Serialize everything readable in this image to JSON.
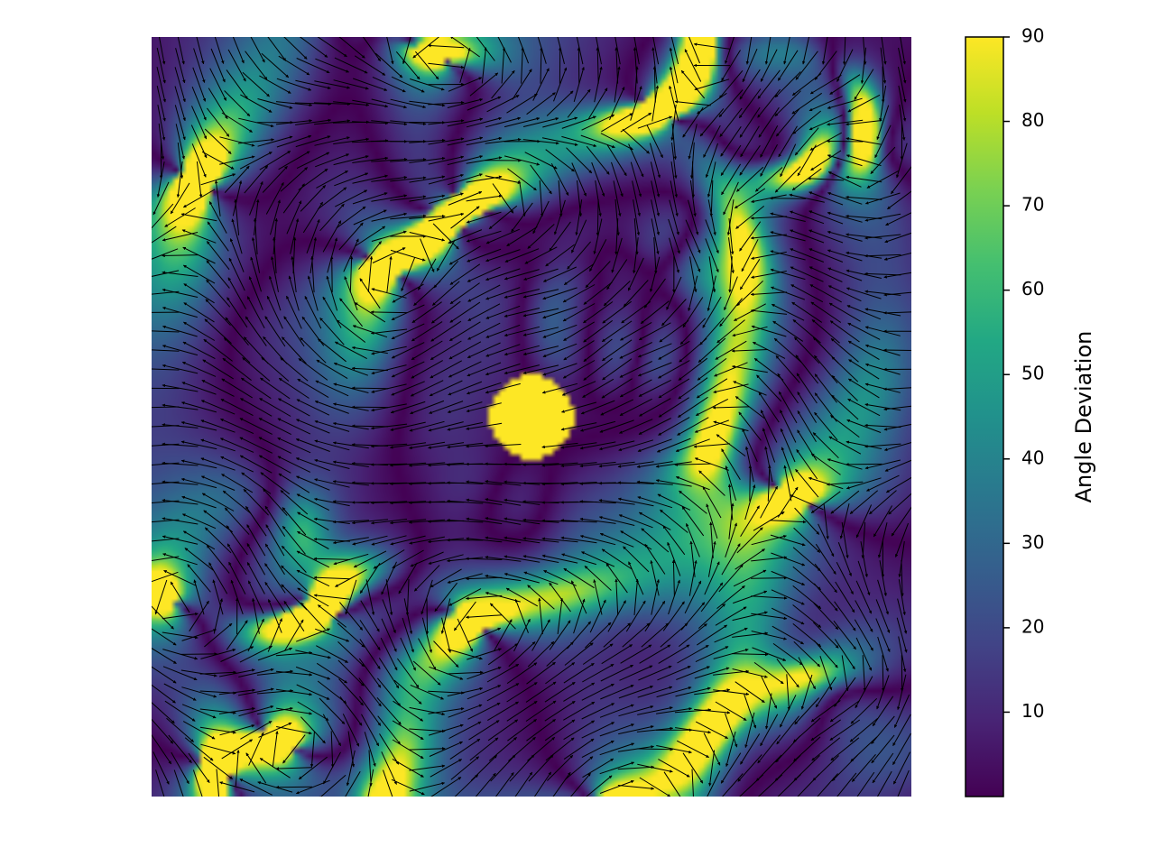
{
  "chart_data": {
    "type": "heatmap",
    "title": "",
    "xlabel": "",
    "ylabel": "",
    "axes_visible": false,
    "overlay": "quiver",
    "colormap": "viridis",
    "colormap_stops": [
      "#440154",
      "#482475",
      "#414487",
      "#355f8d",
      "#2a788e",
      "#21918c",
      "#22a884",
      "#44bf70",
      "#7ad151",
      "#bddf26",
      "#fde725"
    ],
    "value_range": [
      0,
      90
    ],
    "colorbar": {
      "label": "Angle Deviation",
      "ticks": [
        10,
        20,
        30,
        40,
        50,
        60,
        70,
        80,
        90
      ],
      "tick_labels": [
        "10",
        "20",
        "30",
        "40",
        "50",
        "60",
        "70",
        "80",
        "90"
      ],
      "placement": "right"
    },
    "features": [
      {
        "kind": "source",
        "description": "saturated circular region",
        "center": [
          0.5,
          0.5
        ],
        "radius": 0.055,
        "value": 90
      }
    ],
    "field": {
      "grid": [
        40,
        40
      ],
      "domain_x": [
        0,
        1
      ],
      "domain_y": [
        0,
        1
      ]
    }
  }
}
